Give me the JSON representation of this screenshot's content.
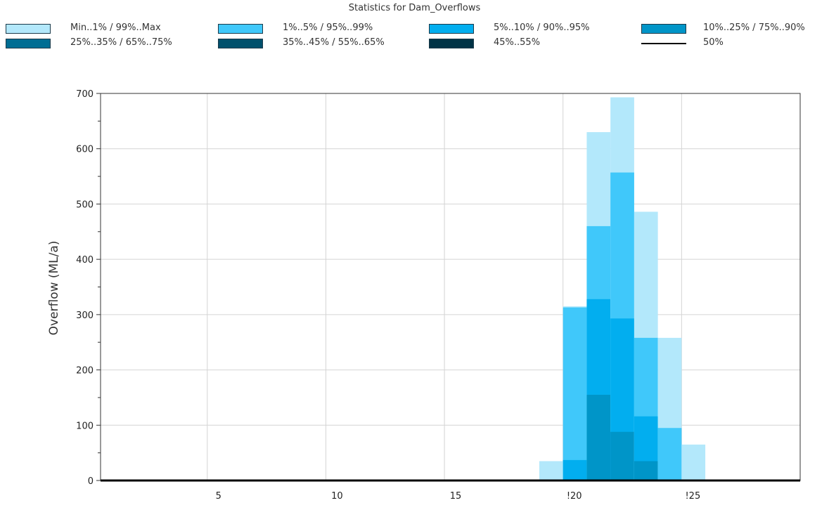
{
  "chart_data": {
    "type": "bar",
    "title": "Statistics for Dam_Overflows",
    "xlabel": "",
    "ylabel": "Overflow (ML/a)",
    "xlim": [
      0.5,
      30
    ],
    "ylim": [
      0,
      700
    ],
    "x_ticks": [
      5,
      10,
      15,
      20,
      25
    ],
    "x_tick_labels": [
      "5",
      "10",
      "15",
      "!20",
      "!25"
    ],
    "y_ticks": [
      0,
      100,
      200,
      300,
      400,
      500,
      600,
      700
    ],
    "y_tick_labels": [
      "0",
      "100",
      "200",
      "300",
      "400",
      "500",
      "600",
      "700"
    ],
    "grid": true,
    "legend_position": "top",
    "bins": [
      {
        "x0": 19,
        "x1": 20,
        "max": 35,
        "p99": 0,
        "p95": 0,
        "p90": 0,
        "p75": 0,
        "median": 0
      },
      {
        "x0": 20,
        "x1": 21,
        "max": 315,
        "p99": 313,
        "p95": 37,
        "p90": 0,
        "p75": 0,
        "median": 0
      },
      {
        "x0": 21,
        "x1": 22,
        "max": 630,
        "p99": 460,
        "p95": 328,
        "p90": 155,
        "p75": 0,
        "median": 0
      },
      {
        "x0": 22,
        "x1": 23,
        "max": 693,
        "p99": 557,
        "p95": 293,
        "p90": 88,
        "p75": 0,
        "median": 0
      },
      {
        "x0": 23,
        "x1": 24,
        "max": 486,
        "p99": 258,
        "p95": 116,
        "p90": 35,
        "p75": 0,
        "median": 0
      },
      {
        "x0": 24,
        "x1": 25,
        "max": 258,
        "p99": 95,
        "p95": 0,
        "p90": 0,
        "p75": 0,
        "median": 0
      },
      {
        "x0": 25,
        "x1": 26,
        "max": 65,
        "p99": 0,
        "p95": 0,
        "p90": 0,
        "p75": 0,
        "median": 0
      }
    ],
    "legend": [
      {
        "label": "Min..1% / 99%..Max",
        "color": "#b3e8fb",
        "kind": "box"
      },
      {
        "label": "1%..5% / 95%..99%",
        "color": "#40c8fa",
        "kind": "box"
      },
      {
        "label": "5%..10% / 90%..95%",
        "color": "#02aeef",
        "kind": "box"
      },
      {
        "label": "10%..25% / 75%..90%",
        "color": "#0095c8",
        "kind": "box"
      },
      {
        "label": "25%..35% / 65%..75%",
        "color": "#006d93",
        "kind": "box"
      },
      {
        "label": "35%..45% / 55%..65%",
        "color": "#00506c",
        "kind": "box"
      },
      {
        "label": "45%..55%",
        "color": "#003346",
        "kind": "box"
      },
      {
        "label": "50%",
        "color": "#000000",
        "kind": "line"
      }
    ]
  }
}
